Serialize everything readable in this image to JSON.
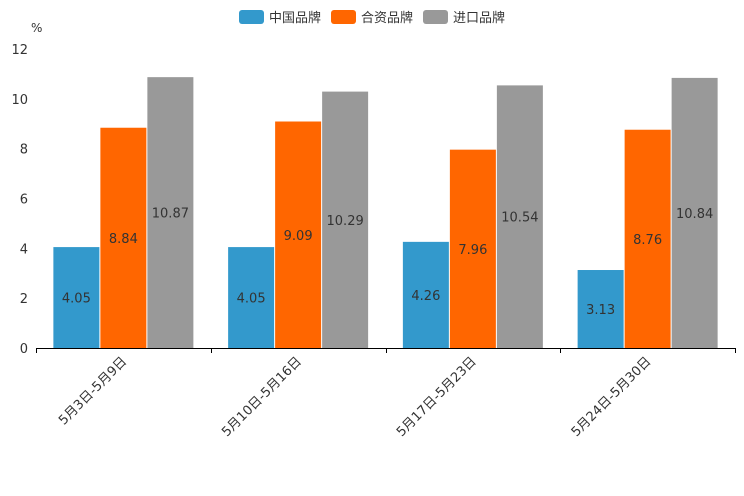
{
  "chart_data": {
    "type": "bar",
    "unit_label": "%",
    "categories": [
      "5月3日-5月9日",
      "5月10日-5月16日",
      "5月17日-5月23日",
      "5月24日-5月30日"
    ],
    "series": [
      {
        "name": "中国品牌",
        "color": "#3399cc",
        "values": [
          4.05,
          4.05,
          4.26,
          3.13
        ]
      },
      {
        "name": "合资品牌",
        "color": "#ff6600",
        "values": [
          8.84,
          9.09,
          7.96,
          8.76
        ]
      },
      {
        "name": "进口品牌",
        "color": "#999999",
        "values": [
          10.87,
          10.29,
          10.54,
          10.84
        ]
      }
    ],
    "ylim": [
      0,
      12
    ],
    "yticks": [
      0,
      2,
      4,
      6,
      8,
      10,
      12
    ],
    "legend_position": "top-center"
  }
}
